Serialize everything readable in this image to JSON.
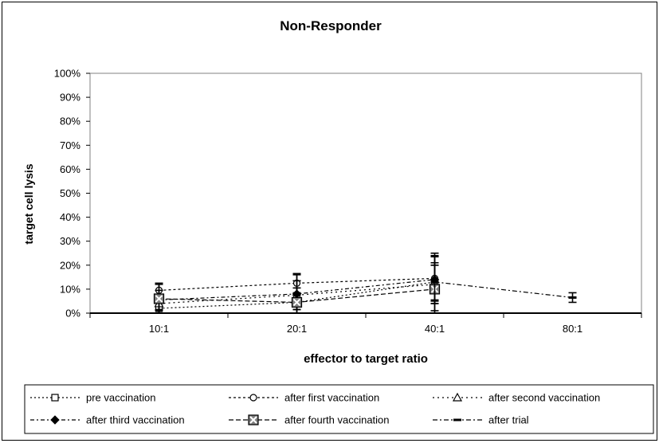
{
  "chart_data": {
    "type": "line",
    "title": "Non-Responder",
    "xlabel": "effector to target ratio",
    "ylabel": "target cell lysis",
    "categories": [
      "10:1",
      "20:1",
      "40:1",
      "80:1"
    ],
    "ylim": [
      0,
      100
    ],
    "yticks": [
      "0%",
      "10%",
      "20%",
      "30%",
      "40%",
      "50%",
      "60%",
      "70%",
      "80%",
      "90%",
      "100%"
    ],
    "grid": false,
    "legend_position": "bottom",
    "series": [
      {
        "name": "pre vaccination",
        "marker": "square-open",
        "values": [
          2,
          4.5,
          13,
          null
        ],
        "err": [
          3,
          3,
          8,
          null
        ]
      },
      {
        "name": "after first vaccination",
        "marker": "circle-open",
        "values": [
          9.5,
          12.5,
          14.5,
          null
        ],
        "err": [
          3,
          4,
          9,
          null
        ]
      },
      {
        "name": "after second vaccination",
        "marker": "triangle-open",
        "values": [
          4,
          7.5,
          12,
          null
        ],
        "err": [
          3,
          6,
          8,
          null
        ]
      },
      {
        "name": "after third vaccination",
        "marker": "diamond-filled",
        "values": [
          5.5,
          8,
          14,
          null
        ],
        "err": [
          4,
          8,
          10,
          null
        ]
      },
      {
        "name": "after fourth vaccination",
        "marker": "square-x",
        "values": [
          6,
          4.5,
          10,
          null
        ],
        "err": [
          6,
          6,
          10,
          null
        ]
      },
      {
        "name": "after trial",
        "marker": "dash",
        "values": [
          null,
          null,
          13,
          6.5
        ],
        "err": [
          null,
          null,
          12,
          2
        ]
      }
    ]
  }
}
